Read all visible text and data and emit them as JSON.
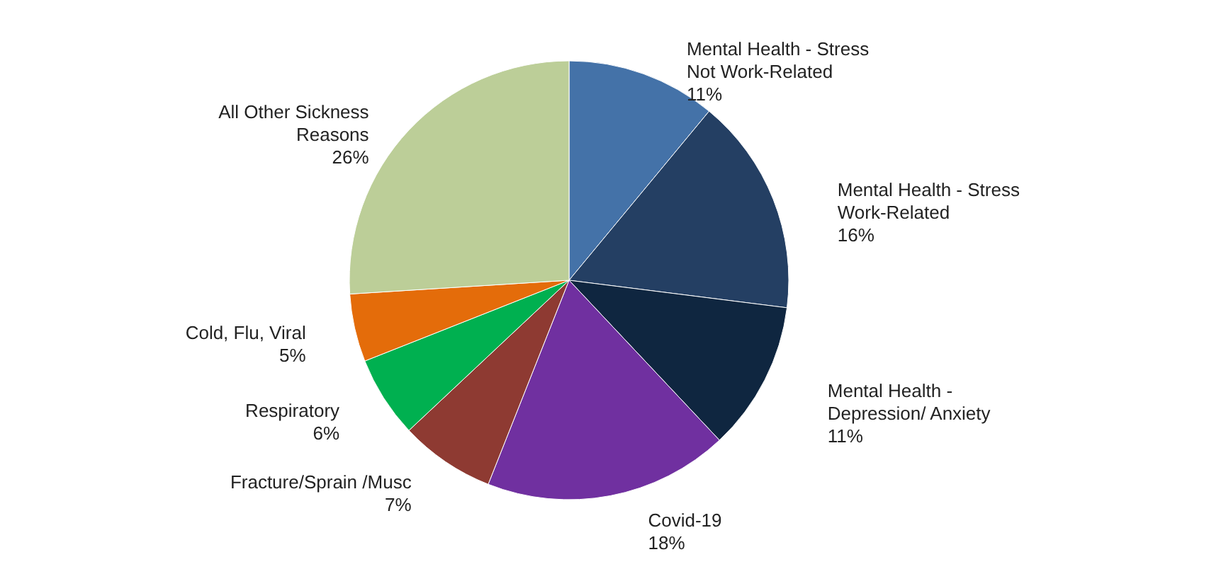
{
  "chart_data": {
    "type": "pie",
    "categories": [
      "Mental Health - Stress Not Work-Related",
      "Mental Health - Stress Work-Related",
      "Mental Health - Depression/ Anxiety",
      "Covid-19",
      "Fracture/Sprain /Musc",
      "Respiratory",
      "Cold, Flu, Viral",
      "All Other Sickness Reasons"
    ],
    "values": [
      11,
      16,
      11,
      18,
      7,
      6,
      5,
      26
    ],
    "colors": [
      "#4472a8",
      "#243f63",
      "#0f2640",
      "#7030a0",
      "#8e3a32",
      "#00b050",
      "#e46c0a",
      "#bcce98"
    ],
    "value_labels": [
      "11%",
      "16%",
      "11%",
      "18%",
      "7%",
      "6%",
      "5%",
      "26%"
    ]
  }
}
